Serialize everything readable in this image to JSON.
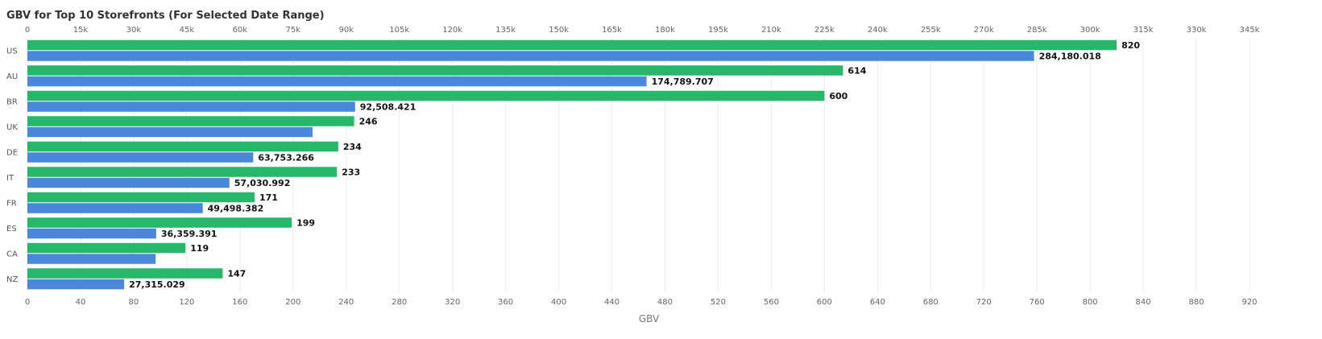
{
  "chart_data": {
    "type": "bar",
    "orientation": "horizontal",
    "title": "GBV for Top 10 Storefronts (For Selected Date Range)",
    "xlabel": "GBV",
    "ylabel": "",
    "categories": [
      "US",
      "AU",
      "BR",
      "UK",
      "DE",
      "IT",
      "FR",
      "ES",
      "CA",
      "NZ"
    ],
    "series": [
      {
        "axis": "bottom",
        "color": "#27b76a",
        "values": [
          820,
          614,
          600,
          246,
          234,
          233,
          171,
          199,
          119,
          147
        ],
        "labels": [
          "820",
          "614",
          "600",
          "246",
          "234",
          "233",
          "171",
          "199",
          "119",
          "147"
        ]
      },
      {
        "axis": "top",
        "color": "#4a88dc",
        "values": [
          284180.018,
          174789.707,
          92508.421,
          80500,
          63753.266,
          57030.992,
          49498.382,
          36359.391,
          36200,
          27315.029
        ],
        "labels": [
          "284,180.018",
          "174,789.707",
          "92,508.421",
          "",
          "63,753.266",
          "57,030.992",
          "49,498.382",
          "36,359.391",
          "",
          "27,315.029"
        ]
      }
    ],
    "bottom_axis": {
      "range": [
        0,
        920
      ],
      "ticks": [
        0,
        40,
        80,
        120,
        160,
        200,
        240,
        280,
        320,
        360,
        400,
        440,
        480,
        520,
        560,
        600,
        640,
        680,
        720,
        760,
        800,
        840,
        880,
        920
      ]
    },
    "top_axis": {
      "range": [
        0,
        345000
      ],
      "ticks": [
        "0",
        "15k",
        "30k",
        "45k",
        "60k",
        "75k",
        "90k",
        "105k",
        "120k",
        "135k",
        "150k",
        "165k",
        "180k",
        "195k",
        "210k",
        "225k",
        "240k",
        "255k",
        "270k",
        "285k",
        "300k",
        "315k",
        "330k",
        "345k"
      ]
    },
    "grid": true,
    "legend": "none"
  }
}
